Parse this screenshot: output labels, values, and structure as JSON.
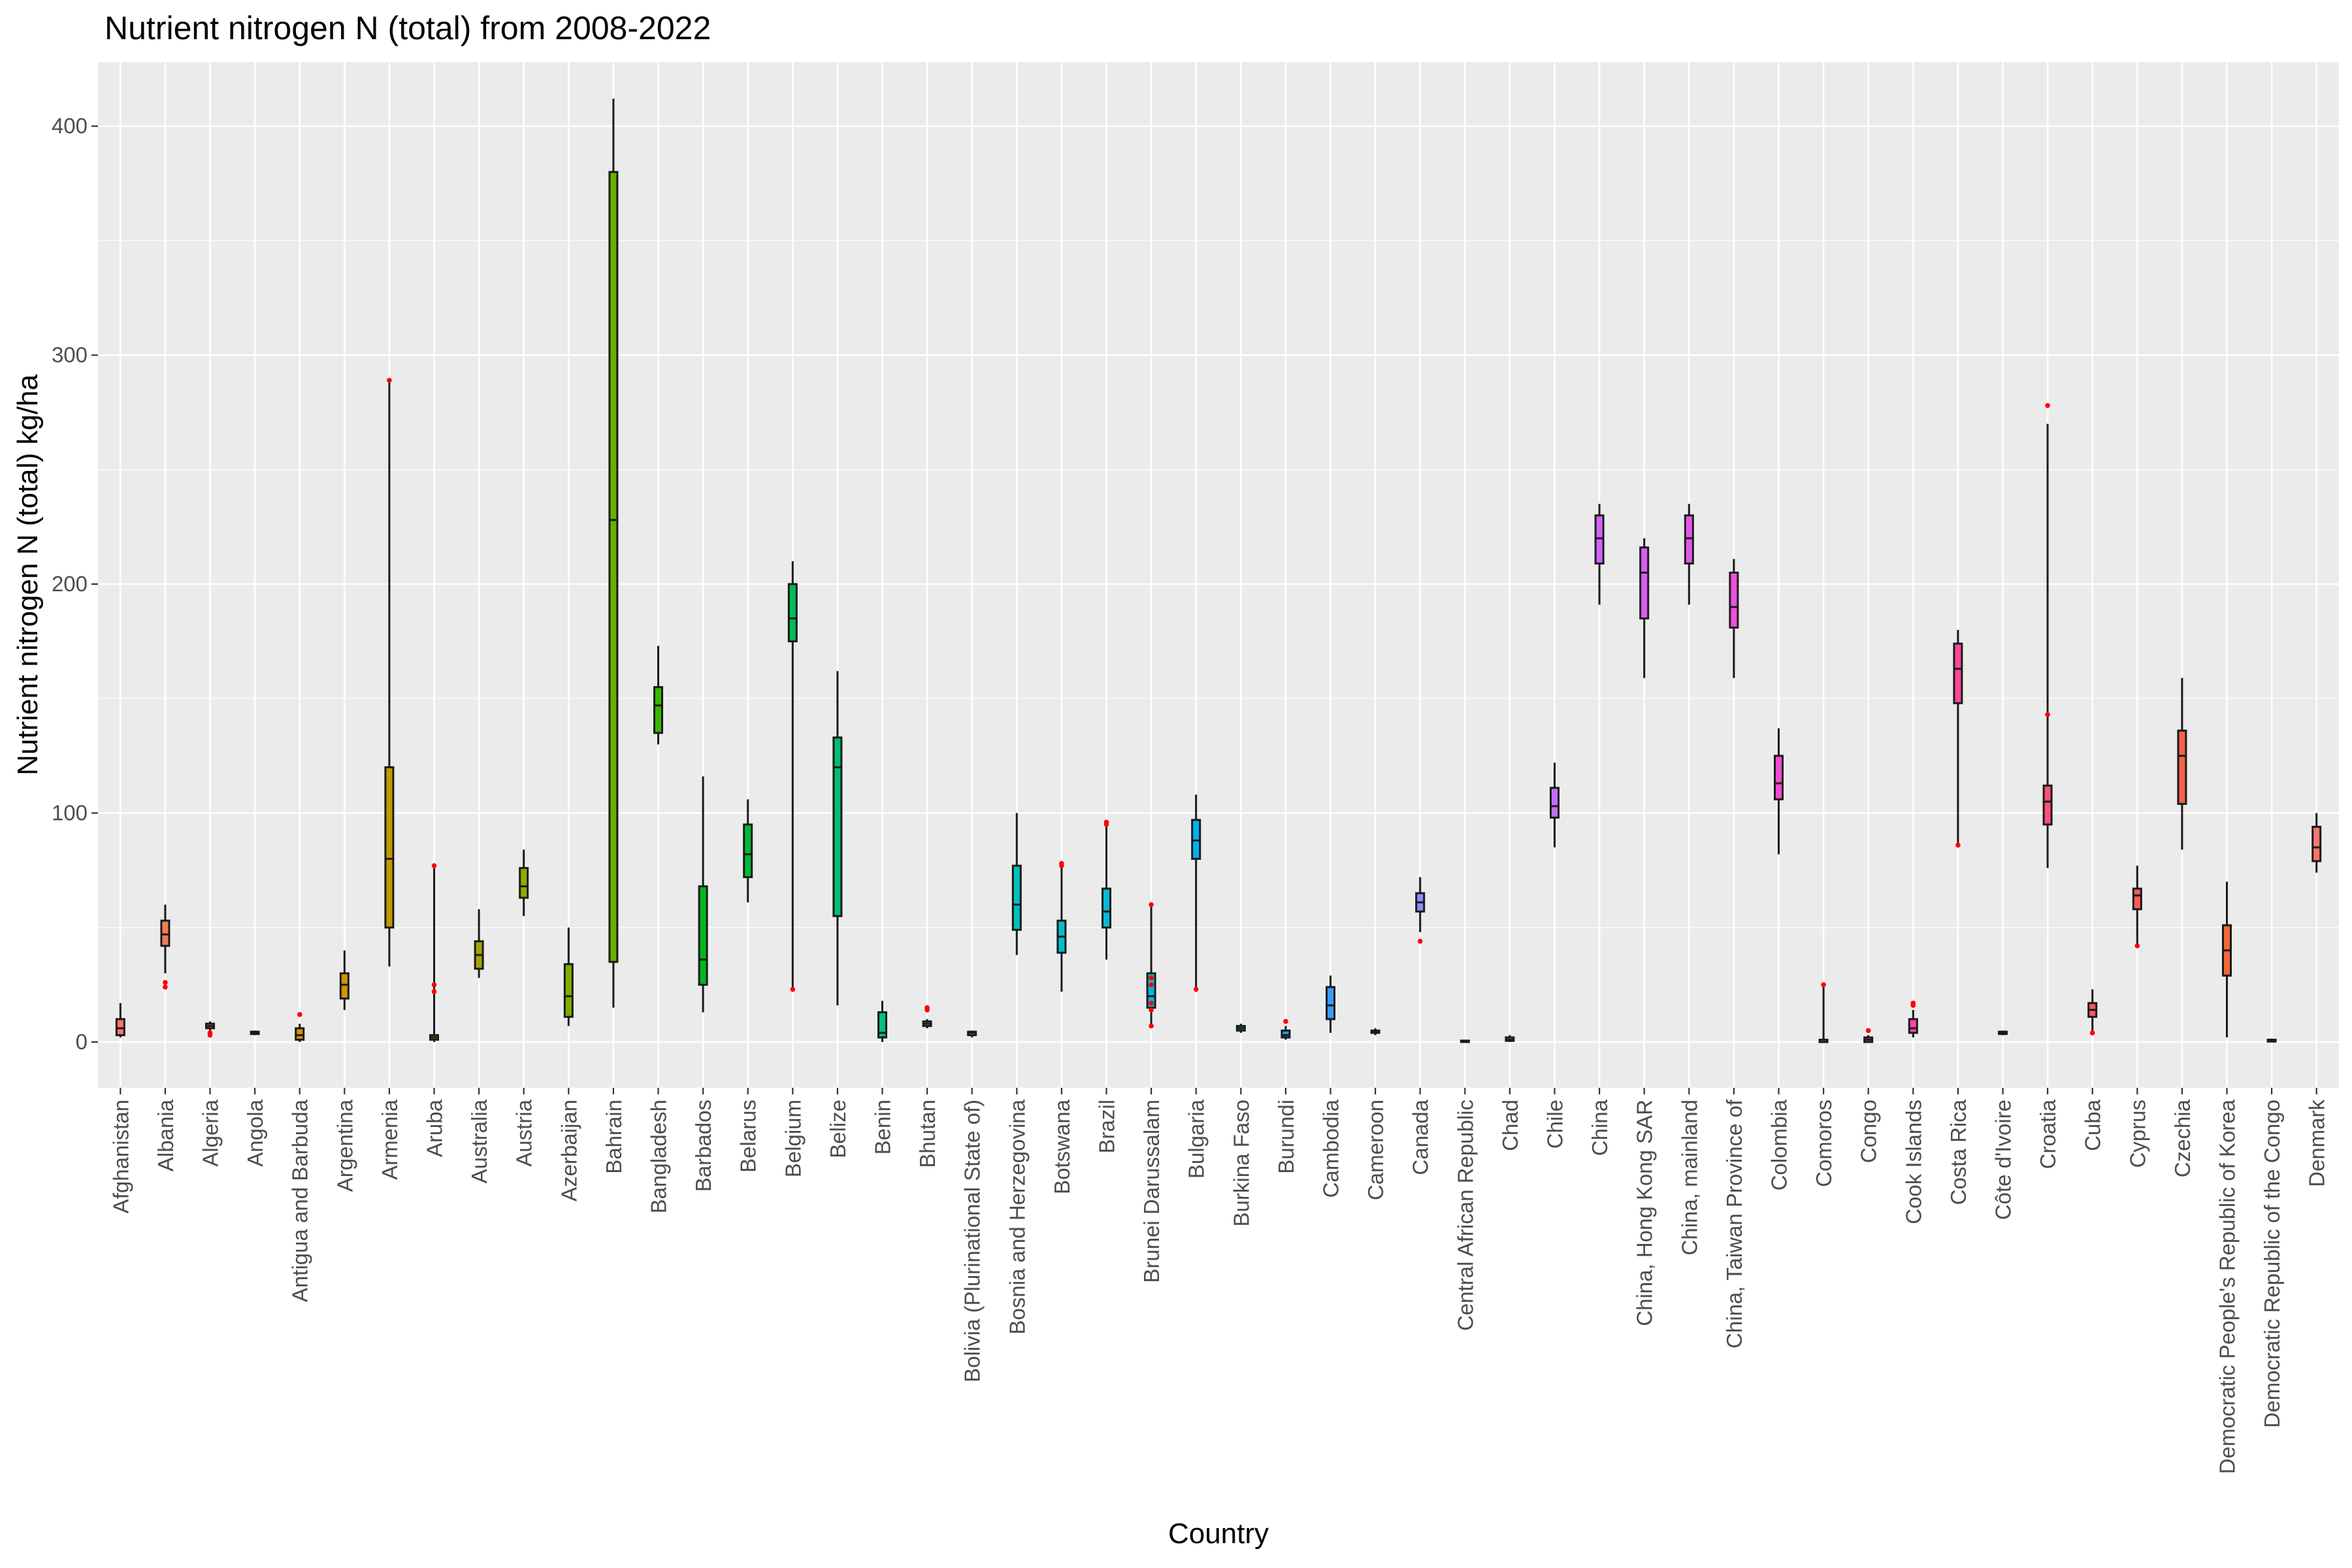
{
  "chart_data": {
    "type": "box",
    "title": "Nutrient nitrogen N (total) from 2008-2022",
    "xlabel": "Country",
    "ylabel": "Nutrient nitrogen N (total) kg/ha",
    "ylim": [
      -20,
      428
    ],
    "yticks": [
      0,
      100,
      200,
      300,
      400
    ],
    "grid": true,
    "legend": "none",
    "outlier_color": "#ff0000",
    "panel_background": "#ebebeb",
    "categories": [
      {
        "name": "Afghanistan",
        "color": "#f8766d",
        "min": 2,
        "q1": 3,
        "median": 6,
        "q3": 10,
        "max": 17,
        "outliers": []
      },
      {
        "name": "Albania",
        "color": "#f27d52",
        "min": 30,
        "q1": 42,
        "median": 47,
        "q3": 53,
        "max": 60,
        "outliers": [
          24,
          26
        ]
      },
      {
        "name": "Algeria",
        "color": "#ea8331",
        "min": 5,
        "q1": 6,
        "median": 7,
        "q3": 8,
        "max": 9,
        "outliers": [
          3,
          4
        ]
      },
      {
        "name": "Angola",
        "color": "#e18a00",
        "min": 3,
        "q1": 3.5,
        "median": 4,
        "q3": 4.5,
        "max": 5,
        "outliers": []
      },
      {
        "name": "Antigua and Barbuda",
        "color": "#d89000",
        "min": 0,
        "q1": 1,
        "median": 3,
        "q3": 6,
        "max": 8,
        "outliers": [
          12
        ]
      },
      {
        "name": "Argentina",
        "color": "#cd9600",
        "min": 14,
        "q1": 19,
        "median": 25,
        "q3": 30,
        "max": 40,
        "outliers": []
      },
      {
        "name": "Armenia",
        "color": "#c09b00",
        "min": 33,
        "q1": 50,
        "median": 80,
        "q3": 120,
        "max": 290,
        "outliers": [
          289
        ]
      },
      {
        "name": "Aruba",
        "color": "#b3a000",
        "min": 0,
        "q1": 1,
        "median": 2,
        "q3": 3,
        "max": 76,
        "outliers": [
          77,
          25,
          22
        ]
      },
      {
        "name": "Australia",
        "color": "#a3a500",
        "min": 28,
        "q1": 32,
        "median": 38,
        "q3": 44,
        "max": 58,
        "outliers": []
      },
      {
        "name": "Austria",
        "color": "#93aa00",
        "min": 55,
        "q1": 63,
        "median": 68,
        "q3": 76,
        "max": 84,
        "outliers": []
      },
      {
        "name": "Azerbaijan",
        "color": "#7fae00",
        "min": 7,
        "q1": 11,
        "median": 20,
        "q3": 34,
        "max": 50,
        "outliers": []
      },
      {
        "name": "Bahrain",
        "color": "#64b200",
        "min": 15,
        "q1": 35,
        "median": 228,
        "q3": 380,
        "max": 412,
        "outliers": []
      },
      {
        "name": "Bangladesh",
        "color": "#39b600",
        "min": 130,
        "q1": 135,
        "median": 147,
        "q3": 155,
        "max": 173,
        "outliers": []
      },
      {
        "name": "Barbados",
        "color": "#00b81f",
        "min": 13,
        "q1": 25,
        "median": 36,
        "q3": 68,
        "max": 116,
        "outliers": []
      },
      {
        "name": "Belarus",
        "color": "#00ba38",
        "min": 61,
        "q1": 72,
        "median": 82,
        "q3": 95,
        "max": 106,
        "outliers": []
      },
      {
        "name": "Belgium",
        "color": "#00bc59",
        "min": 23,
        "q1": 175,
        "median": 185,
        "q3": 200,
        "max": 210,
        "outliers": [
          23
        ]
      },
      {
        "name": "Belize",
        "color": "#00be70",
        "min": 16,
        "q1": 55,
        "median": 120,
        "q3": 133,
        "max": 162,
        "outliers": []
      },
      {
        "name": "Benin",
        "color": "#00c085",
        "min": 0,
        "q1": 2,
        "median": 4,
        "q3": 13,
        "max": 18,
        "outliers": []
      },
      {
        "name": "Bhutan",
        "color": "#00c199",
        "min": 6,
        "q1": 7,
        "median": 8,
        "q3": 9,
        "max": 10,
        "outliers": [
          14,
          15
        ]
      },
      {
        "name": "Bolivia (Plurinational State of)",
        "color": "#00c1ab",
        "min": 2,
        "q1": 3,
        "median": 4,
        "q3": 4.5,
        "max": 5,
        "outliers": []
      },
      {
        "name": "Bosnia and Herzegovina",
        "color": "#00c0bb",
        "min": 38,
        "q1": 49,
        "median": 60,
        "q3": 77,
        "max": 100,
        "outliers": []
      },
      {
        "name": "Botswana",
        "color": "#00beca",
        "min": 22,
        "q1": 39,
        "median": 46,
        "q3": 53,
        "max": 79,
        "outliers": [
          77,
          78
        ]
      },
      {
        "name": "Brazil",
        "color": "#00bbd8",
        "min": 36,
        "q1": 50,
        "median": 57,
        "q3": 67,
        "max": 96,
        "outliers": [
          95,
          96
        ]
      },
      {
        "name": "Brunei Darussalam",
        "color": "#00b7e5",
        "min": 7,
        "q1": 15,
        "median": 20,
        "q3": 30,
        "max": 60,
        "outliers": [
          60,
          28,
          25,
          17,
          14,
          7
        ]
      },
      {
        "name": "Bulgaria",
        "color": "#00b2f1",
        "min": 23,
        "q1": 80,
        "median": 88,
        "q3": 97,
        "max": 108,
        "outliers": [
          23
        ]
      },
      {
        "name": "Burkina Faso",
        "color": "#00acfc",
        "min": 4,
        "q1": 5,
        "median": 6,
        "q3": 7,
        "max": 8,
        "outliers": []
      },
      {
        "name": "Burundi",
        "color": "#00a5ff",
        "min": 1,
        "q1": 2,
        "median": 3,
        "q3": 5,
        "max": 7,
        "outliers": [
          9
        ]
      },
      {
        "name": "Cambodia",
        "color": "#369dff",
        "min": 4,
        "q1": 10,
        "median": 16,
        "q3": 24,
        "max": 29,
        "outliers": []
      },
      {
        "name": "Cameroon",
        "color": "#6b94ff",
        "min": 3,
        "q1": 4,
        "median": 4.5,
        "q3": 5,
        "max": 6,
        "outliers": []
      },
      {
        "name": "Canada",
        "color": "#8b8bff",
        "min": 48,
        "q1": 57,
        "median": 61,
        "q3": 65,
        "max": 72,
        "outliers": [
          44
        ]
      },
      {
        "name": "Central African Republic",
        "color": "#a281ff",
        "min": 0,
        "q1": 0,
        "median": 0.3,
        "q3": 0.6,
        "max": 1,
        "outliers": []
      },
      {
        "name": "Chad",
        "color": "#b477ff",
        "min": 0,
        "q1": 0.5,
        "median": 1,
        "q3": 2,
        "max": 3,
        "outliers": []
      },
      {
        "name": "Chile",
        "color": "#c46dff",
        "min": 85,
        "q1": 98,
        "median": 103,
        "q3": 111,
        "max": 122,
        "outliers": []
      },
      {
        "name": "China",
        "color": "#d164fc",
        "min": 191,
        "q1": 209,
        "median": 220,
        "q3": 230,
        "max": 235,
        "outliers": []
      },
      {
        "name": "China, Hong Kong SAR",
        "color": "#dd5cf4",
        "min": 159,
        "q1": 185,
        "median": 205,
        "q3": 216,
        "max": 220,
        "outliers": []
      },
      {
        "name": "China, mainland",
        "color": "#e755ea",
        "min": 191,
        "q1": 209,
        "median": 220,
        "q3": 230,
        "max": 235,
        "outliers": []
      },
      {
        "name": "China, Taiwan Province of",
        "color": "#f04fdf",
        "min": 159,
        "q1": 181,
        "median": 190,
        "q3": 205,
        "max": 211,
        "outliers": []
      },
      {
        "name": "Colombia",
        "color": "#f64ad2",
        "min": 82,
        "q1": 106,
        "median": 113,
        "q3": 125,
        "max": 137,
        "outliers": []
      },
      {
        "name": "Comoros",
        "color": "#fb46c4",
        "min": 0,
        "q1": 0,
        "median": 0,
        "q3": 1,
        "max": 25,
        "outliers": [
          25
        ]
      },
      {
        "name": "Congo",
        "color": "#ff45b6",
        "min": 0,
        "q1": 0,
        "median": 1,
        "q3": 2,
        "max": 3,
        "outliers": [
          5
        ]
      },
      {
        "name": "Cook Islands",
        "color": "#ff45a7",
        "min": 2,
        "q1": 4,
        "median": 6,
        "q3": 10,
        "max": 14,
        "outliers": [
          16,
          17
        ]
      },
      {
        "name": "Costa Rica",
        "color": "#ff4798",
        "min": 86,
        "q1": 148,
        "median": 163,
        "q3": 174,
        "max": 180,
        "outliers": [
          86
        ]
      },
      {
        "name": "Côte d'Ivoire",
        "color": "#ff4b89",
        "min": 3,
        "q1": 3.5,
        "median": 4,
        "q3": 4.5,
        "max": 5,
        "outliers": []
      },
      {
        "name": "Croatia",
        "color": "#ff5079",
        "min": 76,
        "q1": 95,
        "median": 105,
        "q3": 112,
        "max": 270,
        "outliers": [
          278,
          143
        ]
      },
      {
        "name": "Cuba",
        "color": "#fd5669",
        "min": 4,
        "q1": 11,
        "median": 14,
        "q3": 17,
        "max": 23,
        "outliers": [
          4
        ]
      },
      {
        "name": "Cyprus",
        "color": "#fa5c59",
        "min": 42,
        "q1": 58,
        "median": 64,
        "q3": 67,
        "max": 77,
        "outliers": [
          42
        ]
      },
      {
        "name": "Czechia",
        "color": "#f66148",
        "min": 84,
        "q1": 104,
        "median": 125,
        "q3": 136,
        "max": 159,
        "outliers": []
      },
      {
        "name": "Democratic People's Republic of Korea",
        "color": "#f26835",
        "min": 2,
        "q1": 29,
        "median": 40,
        "q3": 51,
        "max": 70,
        "outliers": []
      },
      {
        "name": "Democratic Republic of the Congo",
        "color": "#ee6e1f",
        "min": 0,
        "q1": 0.2,
        "median": 0.5,
        "q3": 1,
        "max": 1.5,
        "outliers": []
      },
      {
        "name": "Denmark",
        "color": "#f8766d",
        "min": 74,
        "q1": 79,
        "median": 85,
        "q3": 94,
        "max": 100,
        "outliers": []
      }
    ]
  }
}
